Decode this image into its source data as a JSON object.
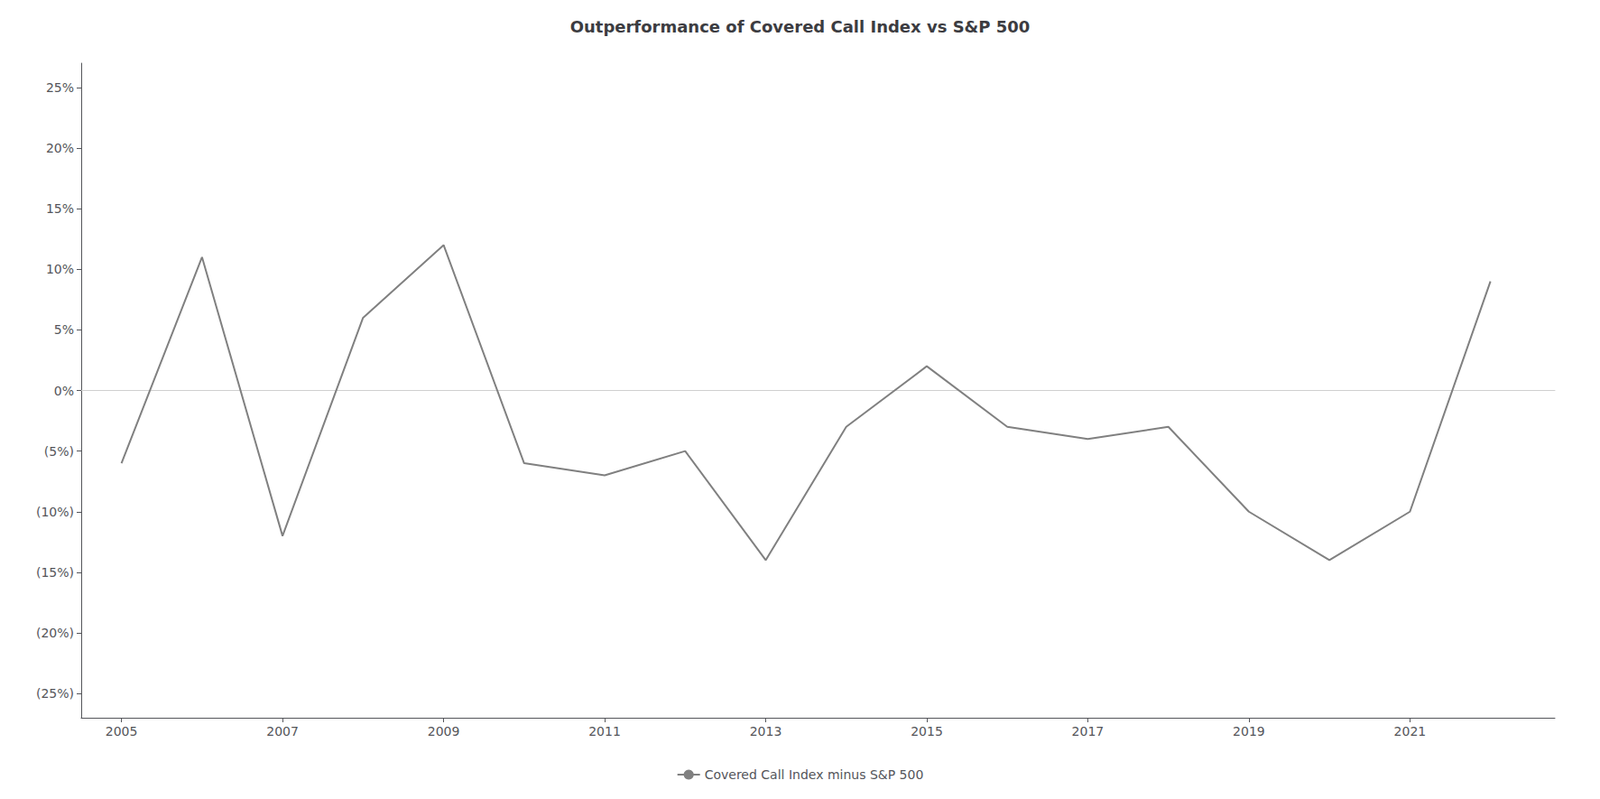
{
  "chart_data": {
    "type": "line",
    "title": "Outperformance of Covered Call Index vs S&P 500",
    "x": [
      2005,
      2006,
      2007,
      2008,
      2009,
      2010,
      2011,
      2012,
      2013,
      2014,
      2015,
      2016,
      2017,
      2018,
      2019,
      2020,
      2021,
      2022
    ],
    "series": [
      {
        "name": "Covered Call Index minus S&P 500",
        "color": "#808080",
        "values": [
          -0.06,
          0.11,
          -0.12,
          0.06,
          0.12,
          -0.06,
          -0.07,
          -0.05,
          -0.14,
          -0.03,
          0.02,
          -0.03,
          -0.04,
          -0.03,
          -0.1,
          -0.14,
          -0.1,
          0.09
        ]
      }
    ],
    "xlim": [
      2004.5,
      2022.8
    ],
    "xticks": [
      2005,
      2007,
      2009,
      2011,
      2013,
      2015,
      2017,
      2019,
      2021
    ],
    "ylim": [
      -0.27,
      0.27
    ],
    "yticks": [
      {
        "value": -0.25,
        "label": "(25%)"
      },
      {
        "value": -0.2,
        "label": "(20%)"
      },
      {
        "value": -0.15,
        "label": "(15%)"
      },
      {
        "value": -0.1,
        "label": "(10%)"
      },
      {
        "value": -0.05,
        "label": "(5%)"
      },
      {
        "value": 0.0,
        "label": "0%"
      },
      {
        "value": 0.05,
        "label": "5%"
      },
      {
        "value": 0.1,
        "label": "10%"
      },
      {
        "value": 0.15,
        "label": "15%"
      },
      {
        "value": 0.2,
        "label": "20%"
      },
      {
        "value": 0.25,
        "label": "25%"
      }
    ],
    "grid": false,
    "legend": "bottom"
  }
}
